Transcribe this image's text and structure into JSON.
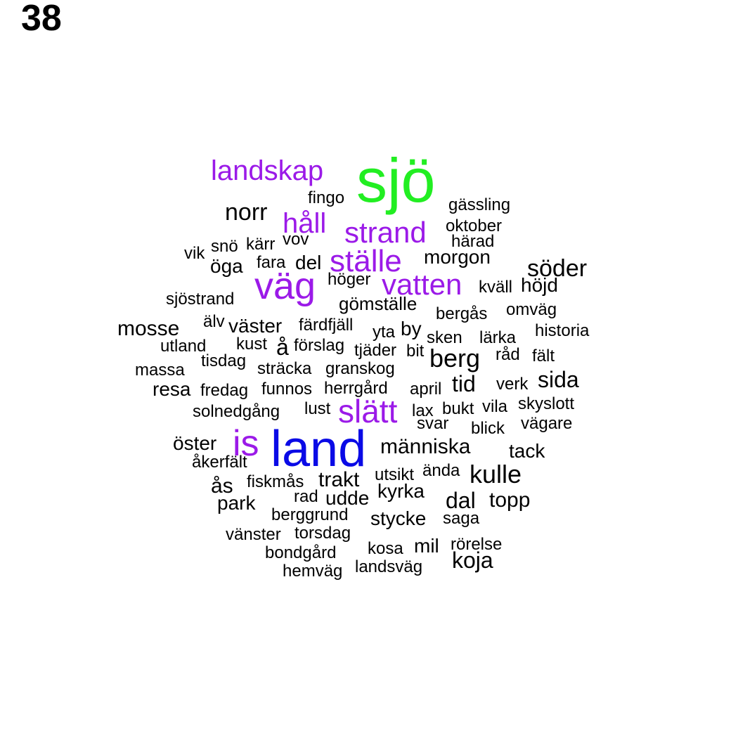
{
  "panel_label": "38",
  "colors": {
    "black": "#000000",
    "purple": "#9b1ae8",
    "green": "#22ee22",
    "blue": "#0a0ae6"
  },
  "words": [
    {
      "text": "sjö",
      "color": "green",
      "rank": 1
    },
    {
      "text": "land",
      "color": "blue",
      "rank": 1
    },
    {
      "text": "väg",
      "color": "purple",
      "rank": 2
    },
    {
      "text": "is",
      "color": "purple",
      "rank": 2
    },
    {
      "text": "slätt",
      "color": "purple",
      "rank": 3
    },
    {
      "text": "ställe",
      "color": "purple",
      "rank": 3
    },
    {
      "text": "strand",
      "color": "purple",
      "rank": 3
    },
    {
      "text": "vatten",
      "color": "purple",
      "rank": 3
    },
    {
      "text": "håll",
      "color": "purple",
      "rank": 3
    },
    {
      "text": "landskap",
      "color": "purple",
      "rank": 3
    },
    {
      "text": "norr",
      "color": "black",
      "rank": 4
    },
    {
      "text": "söder",
      "color": "black",
      "rank": 4
    },
    {
      "text": "berg",
      "color": "black",
      "rank": 4
    },
    {
      "text": "kulle",
      "color": "black",
      "rank": 4
    },
    {
      "text": "människa",
      "color": "black",
      "rank": 5
    },
    {
      "text": "tid",
      "color": "black",
      "rank": 5
    },
    {
      "text": "sida",
      "color": "black",
      "rank": 5
    },
    {
      "text": "mosse",
      "color": "black",
      "rank": 5
    },
    {
      "text": "trakt",
      "color": "black",
      "rank": 5
    },
    {
      "text": "dal",
      "color": "black",
      "rank": 5
    },
    {
      "text": "topp",
      "color": "black",
      "rank": 5
    },
    {
      "text": "koja",
      "color": "black",
      "rank": 5
    },
    {
      "text": "ås",
      "color": "black",
      "rank": 5
    },
    {
      "text": "å",
      "color": "black",
      "rank": 5
    },
    {
      "text": "morgon",
      "color": "black",
      "rank": 6
    },
    {
      "text": "höjd",
      "color": "black",
      "rank": 6
    },
    {
      "text": "del",
      "color": "black",
      "rank": 6
    },
    {
      "text": "öga",
      "color": "black",
      "rank": 6
    },
    {
      "text": "väster",
      "color": "black",
      "rank": 6
    },
    {
      "text": "öster",
      "color": "black",
      "rank": 6
    },
    {
      "text": "resa",
      "color": "black",
      "rank": 6
    },
    {
      "text": "by",
      "color": "black",
      "rank": 6
    },
    {
      "text": "park",
      "color": "black",
      "rank": 6
    },
    {
      "text": "kyrka",
      "color": "black",
      "rank": 6
    },
    {
      "text": "udde",
      "color": "black",
      "rank": 6
    },
    {
      "text": "stycke",
      "color": "black",
      "rank": 6
    },
    {
      "text": "mil",
      "color": "black",
      "rank": 6
    },
    {
      "text": "tack",
      "color": "black",
      "rank": 6
    },
    {
      "text": "gömställe",
      "color": "black",
      "rank": 6
    },
    {
      "text": "fingo",
      "color": "black",
      "rank": 7
    },
    {
      "text": "gässling",
      "color": "black",
      "rank": 7
    },
    {
      "text": "oktober",
      "color": "black",
      "rank": 7
    },
    {
      "text": "härad",
      "color": "black",
      "rank": 7
    },
    {
      "text": "vov",
      "color": "black",
      "rank": 7
    },
    {
      "text": "kärr",
      "color": "black",
      "rank": 7
    },
    {
      "text": "snö",
      "color": "black",
      "rank": 7
    },
    {
      "text": "vik",
      "color": "black",
      "rank": 7
    },
    {
      "text": "fara",
      "color": "black",
      "rank": 7
    },
    {
      "text": "höger",
      "color": "black",
      "rank": 7
    },
    {
      "text": "kväll",
      "color": "black",
      "rank": 7
    },
    {
      "text": "sjöstrand",
      "color": "black",
      "rank": 7
    },
    {
      "text": "bergås",
      "color": "black",
      "rank": 7
    },
    {
      "text": "omväg",
      "color": "black",
      "rank": 7
    },
    {
      "text": "älv",
      "color": "black",
      "rank": 7
    },
    {
      "text": "färdfjäll",
      "color": "black",
      "rank": 7
    },
    {
      "text": "yta",
      "color": "black",
      "rank": 7
    },
    {
      "text": "sken",
      "color": "black",
      "rank": 7
    },
    {
      "text": "lärka",
      "color": "black",
      "rank": 7
    },
    {
      "text": "historia",
      "color": "black",
      "rank": 7
    },
    {
      "text": "utland",
      "color": "black",
      "rank": 7
    },
    {
      "text": "kust",
      "color": "black",
      "rank": 7
    },
    {
      "text": "förslag",
      "color": "black",
      "rank": 7
    },
    {
      "text": "tjäder",
      "color": "black",
      "rank": 7
    },
    {
      "text": "bit",
      "color": "black",
      "rank": 7
    },
    {
      "text": "råd",
      "color": "black",
      "rank": 7
    },
    {
      "text": "fält",
      "color": "black",
      "rank": 7
    },
    {
      "text": "massa",
      "color": "black",
      "rank": 7
    },
    {
      "text": "tisdag",
      "color": "black",
      "rank": 7
    },
    {
      "text": "sträcka",
      "color": "black",
      "rank": 7
    },
    {
      "text": "granskog",
      "color": "black",
      "rank": 7
    },
    {
      "text": "fredag",
      "color": "black",
      "rank": 7
    },
    {
      "text": "funnos",
      "color": "black",
      "rank": 7
    },
    {
      "text": "herrgård",
      "color": "black",
      "rank": 7
    },
    {
      "text": "april",
      "color": "black",
      "rank": 7
    },
    {
      "text": "verk",
      "color": "black",
      "rank": 7
    },
    {
      "text": "solnedgång",
      "color": "black",
      "rank": 7
    },
    {
      "text": "lust",
      "color": "black",
      "rank": 7
    },
    {
      "text": "lax",
      "color": "black",
      "rank": 7
    },
    {
      "text": "bukt",
      "color": "black",
      "rank": 7
    },
    {
      "text": "vila",
      "color": "black",
      "rank": 7
    },
    {
      "text": "skyslott",
      "color": "black",
      "rank": 7
    },
    {
      "text": "svar",
      "color": "black",
      "rank": 7
    },
    {
      "text": "blick",
      "color": "black",
      "rank": 7
    },
    {
      "text": "vägare",
      "color": "black",
      "rank": 7
    },
    {
      "text": "åkerfält",
      "color": "black",
      "rank": 7
    },
    {
      "text": "fiskmås",
      "color": "black",
      "rank": 7
    },
    {
      "text": "utsikt",
      "color": "black",
      "rank": 7
    },
    {
      "text": "ända",
      "color": "black",
      "rank": 7
    },
    {
      "text": "rad",
      "color": "black",
      "rank": 7
    },
    {
      "text": "berggrund",
      "color": "black",
      "rank": 7
    },
    {
      "text": "saga",
      "color": "black",
      "rank": 7
    },
    {
      "text": "vänster",
      "color": "black",
      "rank": 7
    },
    {
      "text": "torsdag",
      "color": "black",
      "rank": 7
    },
    {
      "text": "bondgård",
      "color": "black",
      "rank": 7
    },
    {
      "text": "kosa",
      "color": "black",
      "rank": 7
    },
    {
      "text": "rörelse",
      "color": "black",
      "rank": 7
    },
    {
      "text": "hemväg",
      "color": "black",
      "rank": 7
    },
    {
      "text": "landsväg",
      "color": "black",
      "rank": 7
    }
  ]
}
